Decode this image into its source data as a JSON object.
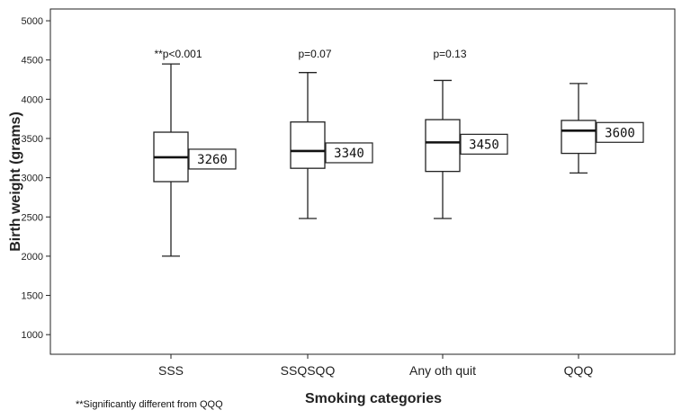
{
  "chart_data": {
    "type": "boxplot",
    "title": "",
    "xlabel": "Smoking categories",
    "ylabel": "Birth weight (grams)",
    "ylim": [
      750,
      5150
    ],
    "yticks": [
      1000,
      1500,
      2000,
      2500,
      3000,
      3500,
      4000,
      4500,
      5000
    ],
    "grid": false,
    "categories": [
      "SSS",
      "SSQSQQ",
      "Any oth quit",
      "QQQ"
    ],
    "boxes": [
      {
        "category": "SSS",
        "whisker_low": 2000,
        "q1": 2950,
        "median": 3260,
        "q3": 3580,
        "whisker_high": 4450,
        "median_label": "3260",
        "p_label": "**p<0.001"
      },
      {
        "category": "SSQSQQ",
        "whisker_low": 2480,
        "q1": 3120,
        "median": 3340,
        "q3": 3710,
        "whisker_high": 4340,
        "median_label": "3340",
        "p_label": "p=0.07"
      },
      {
        "category": "Any oth quit",
        "whisker_low": 2480,
        "q1": 3080,
        "median": 3450,
        "q3": 3740,
        "whisker_high": 4240,
        "median_label": "3450",
        "p_label": "p=0.13"
      },
      {
        "category": "QQQ",
        "whisker_low": 3060,
        "q1": 3310,
        "median": 3600,
        "q3": 3730,
        "whisker_high": 4200,
        "median_label": "3600",
        "p_label": ""
      }
    ],
    "footnote": "**Significantly different from  QQQ"
  }
}
